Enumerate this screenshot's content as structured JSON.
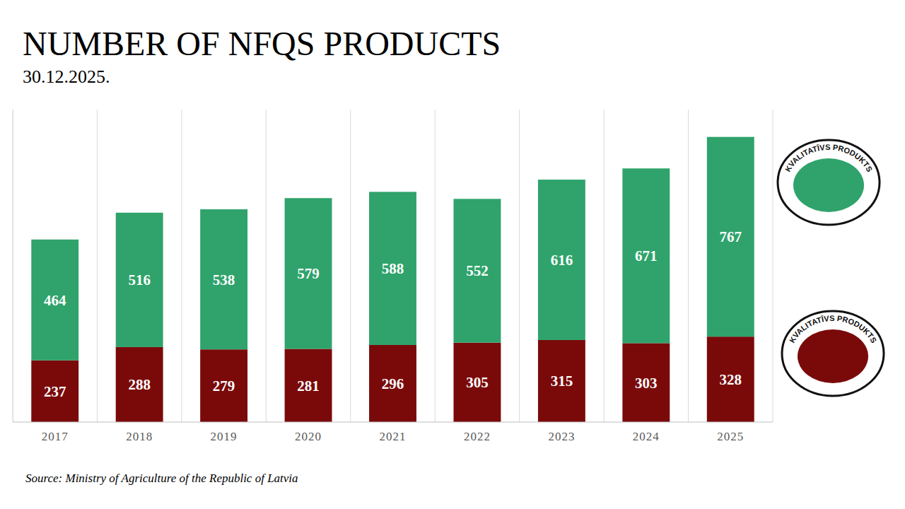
{
  "chart_data": {
    "type": "bar",
    "title": "NUMBER OF NFQS PRODUCTS",
    "subtitle": "30.12.2025.",
    "source": "Source: Ministry of Agriculture of the Republic of Latvia",
    "categories": [
      "2017",
      "2018",
      "2019",
      "2020",
      "2021",
      "2022",
      "2023",
      "2024",
      "2025"
    ],
    "series": [
      {
        "name": "KVALITATĪVS PRODUKTS",
        "color": "#7a0a0a",
        "values": [
          237,
          288,
          279,
          281,
          296,
          305,
          315,
          303,
          328
        ]
      },
      {
        "name": "KVALITATĪVS PRODUKTS",
        "color": "#2fa36b",
        "values": [
          464,
          516,
          538,
          579,
          588,
          552,
          616,
          671,
          767
        ]
      }
    ],
    "ylim": [
      0,
      1200
    ],
    "stacked": true,
    "data_labels": true,
    "grid": true,
    "tick_labels": "x",
    "legend": "right"
  }
}
